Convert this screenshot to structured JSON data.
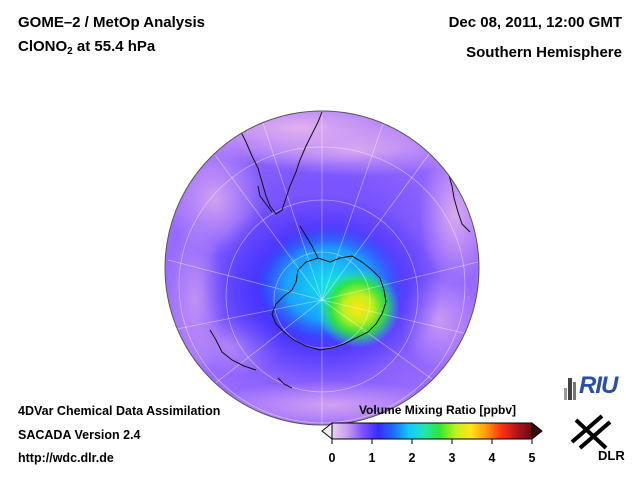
{
  "header": {
    "product_title": "GOME–2 / MetOp Analysis",
    "species_prefix": "ClONO",
    "species_subscript": "2",
    "species_suffix": " at 55.4 hPa",
    "datetime": "Dec 08, 2011, 12:00 GMT",
    "region": "Southern Hemisphere"
  },
  "footer": {
    "line1": "4DVar Chemical Data Assimilation",
    "line2": "SACADA Version 2.4",
    "line3": "http://wdc.dlr.de"
  },
  "colorbar": {
    "title": "Volume Mixing Ratio [ppbv]",
    "min": 0,
    "max": 5,
    "ticks": [
      "0",
      "1",
      "2",
      "3",
      "4",
      "5"
    ],
    "stops": [
      "#e6d2f0",
      "#c89bf0",
      "#7f50ff",
      "#3a2bff",
      "#1e6cff",
      "#13c8ff",
      "#21e6b0",
      "#32e632",
      "#bff01e",
      "#ffe614",
      "#ff9a0f",
      "#ff3214",
      "#b4141e",
      "#6a0a12"
    ]
  },
  "map": {
    "projection": "orthographic south polar",
    "colors": {
      "background_high": "#e6b4ee",
      "field_mid": "#7f50ff",
      "field_low": "#3a2bff",
      "hotspot_center": "#ffe614",
      "hotspot_edge": "#32e632",
      "coast": "#111111",
      "graticule": "#ffffff"
    }
  },
  "logos": {
    "riu": "RIU",
    "dlr": "DLR"
  }
}
